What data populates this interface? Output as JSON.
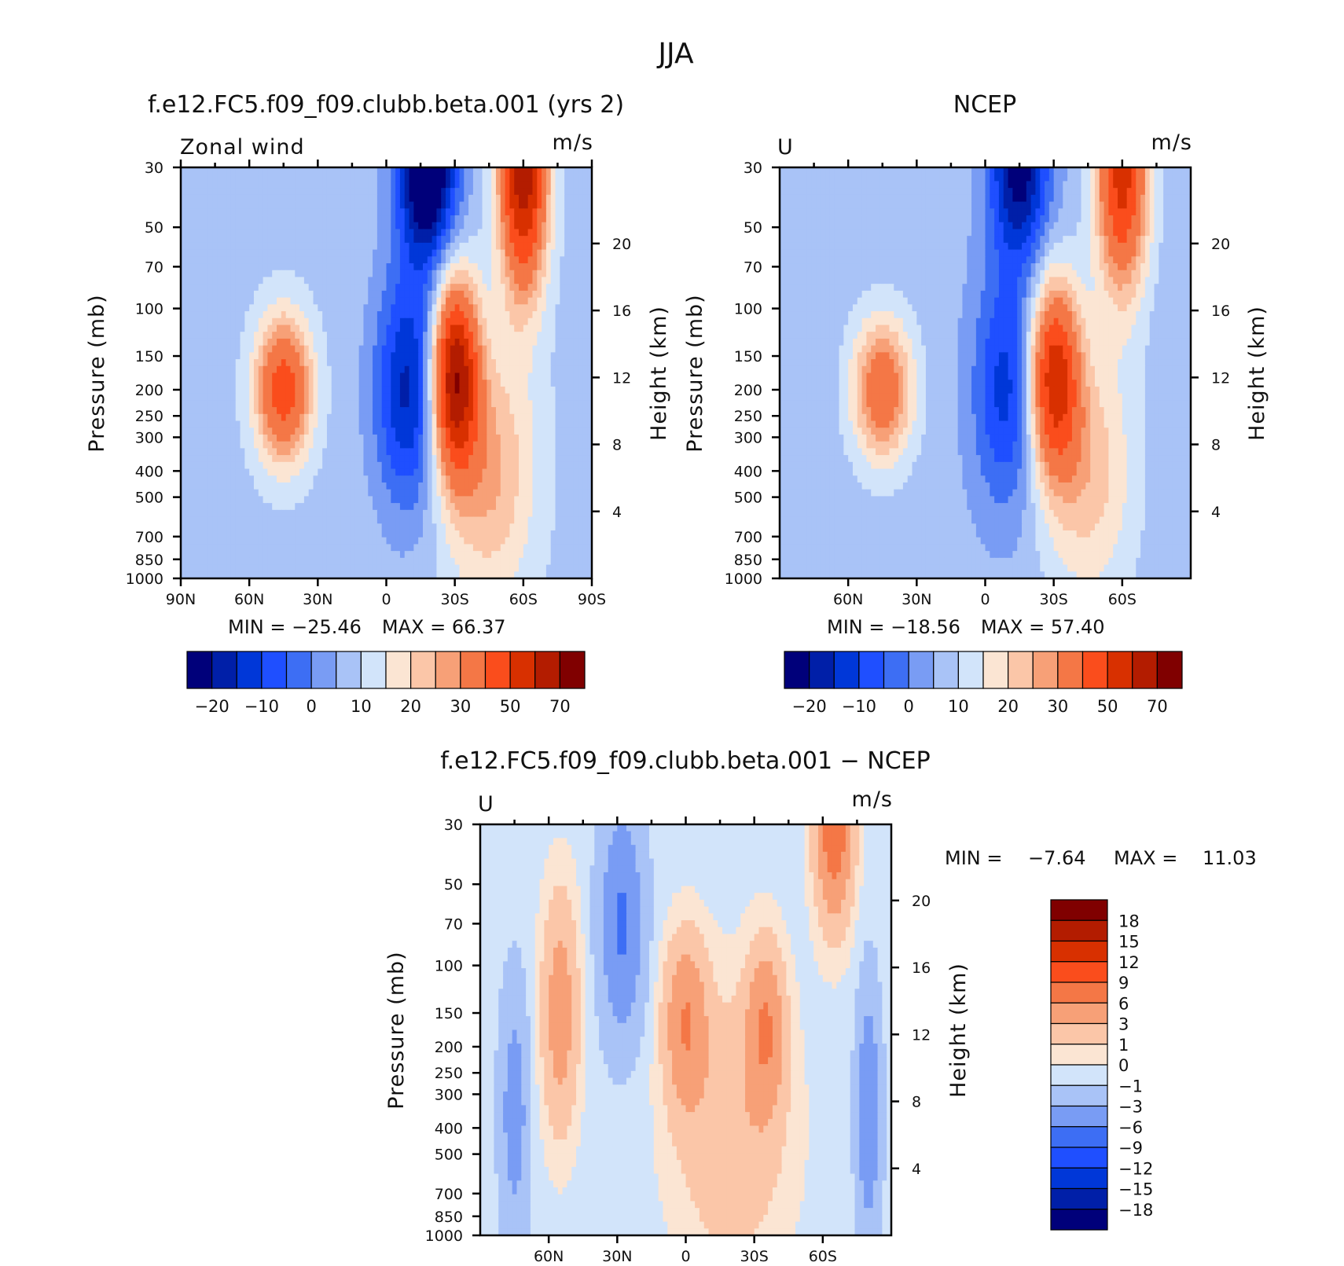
{
  "figure_title": "JJA",
  "chart_data": [
    {
      "type": "contour",
      "id": "model",
      "title": "f.e12.FC5.f09_f09.clubb.beta.001 (yrs 2)",
      "left_label": "Zonal wind",
      "units": "m/s",
      "ylabel": "Pressure (mb)",
      "y2label": "Height (km)",
      "x_ticks": [
        "90N",
        "60N",
        "30N",
        "0",
        "30S",
        "60S",
        "90S"
      ],
      "x_tick_lat": [
        90,
        60,
        30,
        0,
        -30,
        -60,
        -90
      ],
      "y_ticks": [
        "30",
        "50",
        "70",
        "100",
        "150",
        "200",
        "250",
        "300",
        "400",
        "500",
        "700",
        "850",
        "1000"
      ],
      "y_tick_p": [
        30,
        50,
        70,
        100,
        150,
        200,
        250,
        300,
        400,
        500,
        700,
        850,
        1000
      ],
      "height_ticks": [
        "20",
        "16",
        "12",
        "8",
        "4"
      ],
      "height_km": [
        20,
        16,
        12,
        8,
        4
      ],
      "xlim": [
        90,
        -90
      ],
      "ylim": [
        1000,
        30
      ],
      "min_label": "MIN = −25.46",
      "max_label": "MAX =   66.37",
      "min": -25.46,
      "max": 66.37,
      "colorbar_labels": [
        "−20",
        "−10",
        "0",
        "10",
        "20",
        "30",
        "50",
        "70"
      ],
      "levels": [
        -20,
        -15,
        -10,
        -5,
        0,
        5,
        10,
        15,
        20,
        25,
        30,
        40,
        50,
        60,
        70
      ],
      "colors": [
        "#00007a",
        "#001fa8",
        "#0037d8",
        "#1f4fff",
        "#3d6ef4",
        "#799cf4",
        "#a9c3f7",
        "#d2e4fa",
        "#fbe5d3",
        "#fbc6a8",
        "#f7a077",
        "#f47746",
        "#fa4d1c",
        "#d83000",
        "#b31c00",
        "#800000"
      ],
      "features": [
        {
          "lat": 45,
          "p": 200,
          "amp": 38,
          "wlat": 12,
          "wp": 0.6
        },
        {
          "lat": -10,
          "p": 200,
          "amp": -25,
          "wlat": 15,
          "wp": 1.0
        },
        {
          "lat": -18,
          "p": 30,
          "amp": -40,
          "wlat": 13,
          "wp": 0.8
        },
        {
          "lat": -30,
          "p": 180,
          "amp": 60,
          "wlat": 10,
          "wp": 0.8
        },
        {
          "lat": -60,
          "p": 30,
          "amp": 60,
          "wlat": 10,
          "wp": 1.0
        },
        {
          "lat": -45,
          "p": 400,
          "amp": 18,
          "wlat": 20,
          "wp": 1.1
        }
      ],
      "base": 8
    },
    {
      "type": "contour",
      "id": "ncep",
      "title": "NCEP",
      "left_label": "U",
      "units": "m/s",
      "ylabel": "Pressure (mb)",
      "y2label": "Height (km)",
      "x_ticks": [
        "60N",
        "30N",
        "0",
        "30S",
        "60S"
      ],
      "x_tick_lat": [
        60,
        30,
        0,
        -30,
        -60
      ],
      "y_ticks": [
        "30",
        "50",
        "70",
        "100",
        "150",
        "200",
        "250",
        "300",
        "400",
        "500",
        "700",
        "850",
        "1000"
      ],
      "y_tick_p": [
        30,
        50,
        70,
        100,
        150,
        200,
        250,
        300,
        400,
        500,
        700,
        850,
        1000
      ],
      "height_ticks": [
        "20",
        "16",
        "12",
        "8",
        "4"
      ],
      "height_km": [
        20,
        16,
        12,
        8,
        4
      ],
      "xlim": [
        90,
        -90
      ],
      "ylim": [
        1000,
        30
      ],
      "min_label": "MIN = −18.56",
      "max_label": "MAX =   57.40",
      "min": -18.56,
      "max": 57.4,
      "colorbar_labels": [
        "−20",
        "−10",
        "0",
        "10",
        "20",
        "30",
        "50",
        "70"
      ],
      "levels": [
        -20,
        -15,
        -10,
        -5,
        0,
        5,
        10,
        15,
        20,
        25,
        30,
        40,
        50,
        60,
        70
      ],
      "colors": [
        "#00007a",
        "#001fa8",
        "#0037d8",
        "#1f4fff",
        "#3d6ef4",
        "#799cf4",
        "#a9c3f7",
        "#d2e4fa",
        "#fbe5d3",
        "#fbc6a8",
        "#f7a077",
        "#f47746",
        "#fa4d1c",
        "#d83000",
        "#b31c00",
        "#800000"
      ],
      "features": [
        {
          "lat": 45,
          "p": 200,
          "amp": 30,
          "wlat": 13,
          "wp": 0.6
        },
        {
          "lat": -10,
          "p": 200,
          "amp": -20,
          "wlat": 15,
          "wp": 1.0
        },
        {
          "lat": -15,
          "p": 30,
          "amp": -30,
          "wlat": 13,
          "wp": 0.8
        },
        {
          "lat": -30,
          "p": 180,
          "amp": 48,
          "wlat": 11,
          "wp": 0.8
        },
        {
          "lat": -60,
          "p": 30,
          "amp": 48,
          "wlat": 11,
          "wp": 1.0
        },
        {
          "lat": -45,
          "p": 400,
          "amp": 16,
          "wlat": 20,
          "wp": 1.1
        }
      ],
      "base": 7
    },
    {
      "type": "contour",
      "id": "diff",
      "title": "f.e12.FC5.f09_f09.clubb.beta.001 − NCEP",
      "left_label": "U",
      "units": "m/s",
      "ylabel": "Pressure (mb)",
      "y2label": "Height (km)",
      "x_ticks": [
        "60N",
        "30N",
        "0",
        "30S",
        "60S"
      ],
      "x_tick_lat": [
        60,
        30,
        0,
        -30,
        -60
      ],
      "y_ticks": [
        "30",
        "50",
        "70",
        "100",
        "150",
        "200",
        "250",
        "300",
        "400",
        "500",
        "700",
        "850",
        "1000"
      ],
      "y_tick_p": [
        30,
        50,
        70,
        100,
        150,
        200,
        250,
        300,
        400,
        500,
        700,
        850,
        1000
      ],
      "height_ticks": [
        "20",
        "16",
        "12",
        "8",
        "4"
      ],
      "height_km": [
        20,
        16,
        12,
        8,
        4
      ],
      "xlim": [
        90,
        -90
      ],
      "ylim": [
        1000,
        30
      ],
      "min_label": "MIN =",
      "min_value": "−7.64",
      "max_label": "MAX =",
      "max_value": "11.03",
      "min": -7.64,
      "max": 11.03,
      "colorbar_labels": [
        "18",
        "15",
        "12",
        "9",
        "6",
        "3",
        "1",
        "0",
        "−1",
        "−3",
        "−6",
        "−9",
        "−12",
        "−15",
        "−18"
      ],
      "levels": [
        -18,
        -15,
        -12,
        -9,
        -6,
        -3,
        -1,
        0,
        1,
        3,
        6,
        9,
        12,
        15,
        18
      ],
      "colors": [
        "#00007a",
        "#001fa8",
        "#0037d8",
        "#1f4fff",
        "#3d6ef4",
        "#799cf4",
        "#a9c3f7",
        "#d2e4fa",
        "#fbe5d3",
        "#fbc6a8",
        "#f7a077",
        "#f47746",
        "#fa4d1c",
        "#d83000",
        "#b31c00",
        "#800000"
      ],
      "features": [
        {
          "lat": 55,
          "p": 150,
          "amp": 5,
          "wlat": 8,
          "wp": 1.0
        },
        {
          "lat": 28,
          "p": 70,
          "amp": -6,
          "wlat": 9,
          "wp": 0.9
        },
        {
          "lat": 0,
          "p": 160,
          "amp": 6,
          "wlat": 9,
          "wp": 0.7
        },
        {
          "lat": -35,
          "p": 170,
          "amp": 6,
          "wlat": 8,
          "wp": 0.7
        },
        {
          "lat": -65,
          "p": 30,
          "amp": 9,
          "wlat": 8,
          "wp": 0.8
        },
        {
          "lat": -80,
          "p": 350,
          "amp": -5,
          "wlat": 5,
          "wp": 1.0
        },
        {
          "lat": 75,
          "p": 350,
          "amp": -4,
          "wlat": 6,
          "wp": 1.0
        },
        {
          "lat": -20,
          "p": 400,
          "amp": 3,
          "wlat": 25,
          "wp": 1.2
        }
      ],
      "base": -0.5
    }
  ]
}
